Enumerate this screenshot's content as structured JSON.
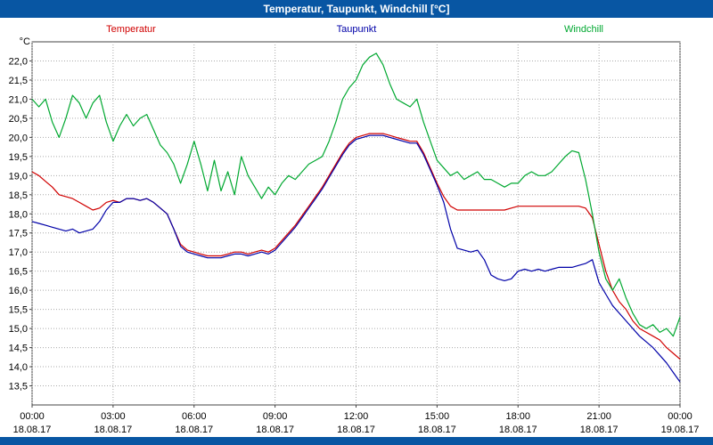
{
  "window": {
    "title": "Temperatur, Taupunkt, Windchill [°C]",
    "titlebar_color": "#0856a3"
  },
  "chart_data": {
    "type": "line",
    "title": "Temperatur, Taupunkt, Windchill [°C]",
    "ylabel": "°C",
    "xlabel": "",
    "grid": "dotted",
    "grid_color": "#aaaaaa",
    "frame_color": "#444444",
    "ylim": [
      13.0,
      22.5
    ],
    "xlim": [
      0,
      24
    ],
    "y_ticks": [
      13.5,
      14.0,
      14.5,
      15.0,
      15.5,
      16.0,
      16.5,
      17.0,
      17.5,
      18.0,
      18.5,
      19.0,
      19.5,
      20.0,
      20.5,
      21.0,
      21.5,
      22.0
    ],
    "y_tick_labels": [
      "13,5",
      "14,0",
      "14,5",
      "15,0",
      "15,5",
      "16,0",
      "16,5",
      "17,0",
      "17,5",
      "18,0",
      "18,5",
      "19,0",
      "19,5",
      "20,0",
      "20,5",
      "21,0",
      "21,5",
      "22,0"
    ],
    "x_ticks": [
      0,
      3,
      6,
      9,
      12,
      15,
      18,
      21,
      24
    ],
    "x_tick_times": [
      "00:00",
      "03:00",
      "06:00",
      "09:00",
      "12:00",
      "15:00",
      "18:00",
      "21:00",
      "00:00"
    ],
    "x_tick_dates": [
      "18.08.17",
      "18.08.17",
      "18.08.17",
      "18.08.17",
      "18.08.17",
      "18.08.17",
      "18.08.17",
      "18.08.17",
      "19.08.17"
    ],
    "x_start": 0,
    "x_step": 0.25,
    "series": [
      {
        "name": "Temperatur",
        "color": "#d00000",
        "values": [
          19.1,
          19.0,
          18.85,
          18.7,
          18.5,
          18.45,
          18.4,
          18.3,
          18.2,
          18.1,
          18.15,
          18.3,
          18.35,
          18.3,
          18.4,
          18.4,
          18.35,
          18.4,
          18.3,
          18.15,
          18.0,
          17.6,
          17.2,
          17.05,
          17.0,
          16.95,
          16.9,
          16.9,
          16.9,
          16.95,
          17.0,
          17.0,
          16.95,
          17.0,
          17.05,
          17.0,
          17.1,
          17.3,
          17.5,
          17.7,
          17.95,
          18.2,
          18.45,
          18.7,
          19.0,
          19.3,
          19.6,
          19.85,
          20.0,
          20.05,
          20.1,
          20.1,
          20.1,
          20.05,
          20.0,
          19.95,
          19.9,
          19.9,
          19.6,
          19.2,
          18.8,
          18.45,
          18.2,
          18.1,
          18.1,
          18.1,
          18.1,
          18.1,
          18.1,
          18.1,
          18.1,
          18.15,
          18.2,
          18.2,
          18.2,
          18.2,
          18.2,
          18.2,
          18.2,
          18.2,
          18.2,
          18.2,
          18.15,
          17.9,
          17.2,
          16.5,
          16.0,
          15.7,
          15.5,
          15.2,
          15.0,
          14.9,
          14.8,
          14.7,
          14.5,
          14.35,
          14.2
        ]
      },
      {
        "name": "Taupunkt",
        "color": "#0000a8",
        "values": [
          17.8,
          17.75,
          17.7,
          17.65,
          17.6,
          17.55,
          17.6,
          17.5,
          17.55,
          17.6,
          17.8,
          18.1,
          18.3,
          18.3,
          18.4,
          18.4,
          18.35,
          18.4,
          18.3,
          18.15,
          18.0,
          17.6,
          17.15,
          17.0,
          16.95,
          16.9,
          16.85,
          16.85,
          16.85,
          16.9,
          16.95,
          16.95,
          16.9,
          16.95,
          17.0,
          16.95,
          17.05,
          17.25,
          17.45,
          17.65,
          17.9,
          18.15,
          18.4,
          18.65,
          18.95,
          19.25,
          19.55,
          19.8,
          19.95,
          20.0,
          20.05,
          20.05,
          20.05,
          20.0,
          19.95,
          19.9,
          19.85,
          19.85,
          19.55,
          19.15,
          18.75,
          18.3,
          17.6,
          17.1,
          17.05,
          17.0,
          17.05,
          16.8,
          16.4,
          16.3,
          16.25,
          16.3,
          16.5,
          16.55,
          16.5,
          16.55,
          16.5,
          16.55,
          16.6,
          16.6,
          16.6,
          16.65,
          16.7,
          16.8,
          16.2,
          15.9,
          15.6,
          15.4,
          15.2,
          15.0,
          14.8,
          14.65,
          14.5,
          14.3,
          14.1,
          13.85,
          13.6
        ]
      },
      {
        "name": "Windchill",
        "color": "#00a830",
        "values": [
          21.0,
          20.8,
          21.0,
          20.4,
          20.0,
          20.5,
          21.1,
          20.9,
          20.5,
          20.9,
          21.1,
          20.4,
          19.9,
          20.3,
          20.6,
          20.3,
          20.5,
          20.6,
          20.2,
          19.8,
          19.6,
          19.3,
          18.8,
          19.3,
          19.9,
          19.3,
          18.6,
          19.4,
          18.6,
          19.1,
          18.5,
          19.5,
          19.0,
          18.7,
          18.4,
          18.7,
          18.5,
          18.8,
          19.0,
          18.9,
          19.1,
          19.3,
          19.4,
          19.5,
          19.9,
          20.4,
          21.0,
          21.3,
          21.5,
          21.9,
          22.1,
          22.2,
          21.9,
          21.4,
          21.0,
          20.9,
          20.8,
          21.0,
          20.4,
          19.9,
          19.4,
          19.2,
          19.0,
          19.1,
          18.9,
          19.0,
          19.1,
          18.9,
          18.9,
          18.8,
          18.7,
          18.8,
          18.8,
          19.0,
          19.1,
          19.0,
          19.0,
          19.1,
          19.3,
          19.5,
          19.65,
          19.6,
          18.9,
          18.0,
          17.0,
          16.3,
          16.0,
          16.3,
          15.8,
          15.4,
          15.1,
          15.0,
          15.1,
          14.9,
          15.0,
          14.8,
          15.3
        ]
      }
    ]
  }
}
